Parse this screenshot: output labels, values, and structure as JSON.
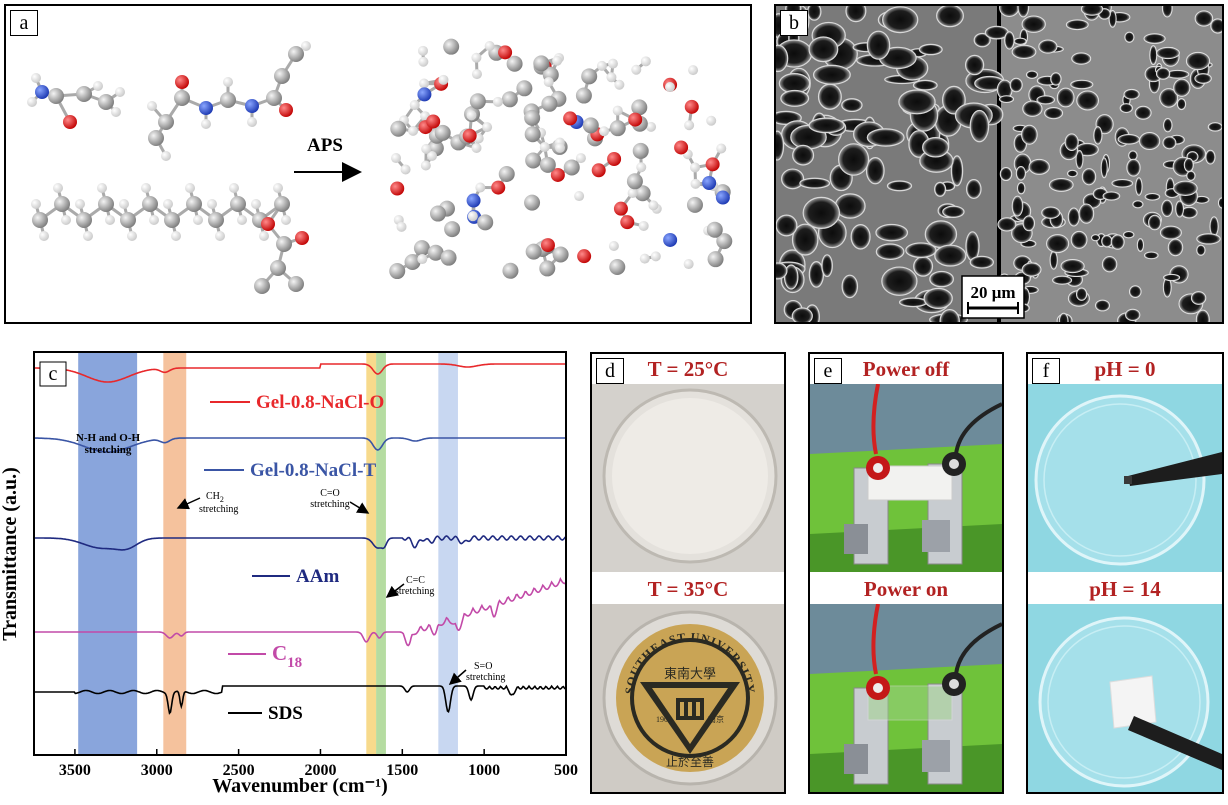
{
  "panels": {
    "a": {
      "label": "a",
      "arrow_label": "APS"
    },
    "b": {
      "label": "b",
      "scale_bar": "20 μm"
    },
    "c": {
      "label": "c"
    },
    "d": {
      "label": "d",
      "top_title": "T = 25°C",
      "bottom_title": "T = 35°C",
      "seal": {
        "ring_text": "SOUTHEAST UNIVERSITY",
        "chinese_top": "東南大學",
        "chinese_bottom": "止於至善",
        "year": "1902",
        "city": "南京"
      }
    },
    "e": {
      "label": "e",
      "top_title": "Power off",
      "bottom_title": "Power on"
    },
    "f": {
      "label": "f",
      "top_title": "pH = 0",
      "bottom_title": "pH = 14"
    }
  },
  "chart_data": {
    "type": "line",
    "xlabel": "Wavenumber (cm⁻¹)",
    "ylabel": "Transmittance (a.u.)",
    "xlim": [
      3750,
      500
    ],
    "x_ticks": [
      "3500",
      "3000",
      "2500",
      "2000",
      "1500",
      "1000",
      "500"
    ],
    "x_tick_values": [
      3500,
      3000,
      2500,
      2000,
      1500,
      1000,
      500
    ],
    "series": [
      {
        "name": "Gel-0.8-NaCl-O",
        "color": "#e8282b"
      },
      {
        "name": "Gel-0.8-NaCl-T",
        "color": "#3a55a5"
      },
      {
        "name": "AAm",
        "color": "#1f2a80"
      },
      {
        "name": "C18",
        "name_base": "C",
        "name_sub": "18",
        "color": "#c24aa8"
      },
      {
        "name": "SDS",
        "color": "#000000"
      }
    ],
    "bands": [
      {
        "from": 3480,
        "to": 3120,
        "color": "#4a74c9"
      },
      {
        "from": 2960,
        "to": 2820,
        "color": "#f0a268"
      },
      {
        "from": 1720,
        "to": 1660,
        "color": "#f3c64f"
      },
      {
        "from": 1660,
        "to": 1600,
        "color": "#8dc96f"
      },
      {
        "from": 1280,
        "to": 1160,
        "color": "#aac1ea"
      }
    ],
    "annotations": [
      {
        "line1": "N-H and O-H",
        "line2": "stretching"
      },
      {
        "line1": "CH",
        "sub": "2",
        "line2": "stretching"
      },
      {
        "line1": "C=O",
        "line2": "stretching"
      },
      {
        "line1": "C=C",
        "line2": "stretching"
      },
      {
        "line1": "S=O",
        "line2": "stretching"
      }
    ]
  }
}
